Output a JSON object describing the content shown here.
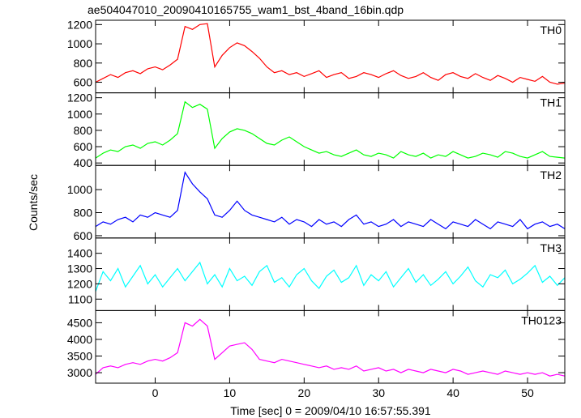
{
  "chart_data": {
    "type": "line",
    "title": "ae504047010_20090410165755_wam1_bst_4band_16bin.qdp",
    "xlabel": "Time [sec] 0 = 2009/04/10 16:57:55.391",
    "ylabel": "Counts/sec",
    "xlim": [
      -8,
      55
    ],
    "xticks": [
      0,
      10,
      20,
      30,
      40,
      50
    ],
    "x": [
      -8,
      -7,
      -6,
      -5,
      -4,
      -3,
      -2,
      -1,
      0,
      1,
      2,
      3,
      4,
      5,
      6,
      7,
      8,
      9,
      10,
      11,
      12,
      13,
      14,
      15,
      16,
      17,
      18,
      19,
      20,
      21,
      22,
      23,
      24,
      25,
      26,
      27,
      28,
      29,
      30,
      31,
      32,
      33,
      34,
      35,
      36,
      37,
      38,
      39,
      40,
      41,
      42,
      43,
      44,
      45,
      46,
      47,
      48,
      49,
      50,
      51,
      52,
      53,
      54,
      55
    ],
    "panels": [
      {
        "name": "TH0",
        "color": "#ff0000",
        "ylim": [
          490,
          1245
        ],
        "yticks": [
          600,
          800,
          1000,
          1200
        ],
        "values": [
          600,
          640,
          680,
          650,
          700,
          720,
          690,
          740,
          760,
          730,
          780,
          840,
          1180,
          1150,
          1200,
          1210,
          760,
          880,
          960,
          1010,
          980,
          920,
          850,
          760,
          700,
          720,
          680,
          700,
          660,
          690,
          720,
          650,
          680,
          700,
          640,
          660,
          700,
          680,
          650,
          690,
          720,
          670,
          640,
          660,
          700,
          650,
          620,
          680,
          700,
          660,
          640,
          690,
          650,
          620,
          670,
          640,
          600,
          650,
          630,
          610,
          660,
          600,
          580,
          590
        ]
      },
      {
        "name": "TH1",
        "color": "#00ff00",
        "ylim": [
          370,
          1260
        ],
        "yticks": [
          400,
          600,
          800,
          1000,
          1200
        ],
        "values": [
          460,
          520,
          560,
          540,
          600,
          620,
          580,
          640,
          660,
          620,
          680,
          760,
          1150,
          1080,
          1120,
          1060,
          580,
          700,
          780,
          820,
          800,
          760,
          700,
          640,
          620,
          680,
          720,
          660,
          600,
          560,
          520,
          540,
          500,
          480,
          520,
          560,
          500,
          480,
          520,
          500,
          460,
          540,
          500,
          480,
          520,
          460,
          500,
          480,
          540,
          500,
          460,
          480,
          520,
          500,
          470,
          540,
          520,
          480,
          460,
          500,
          540,
          480,
          470,
          460
        ]
      },
      {
        "name": "TH2",
        "color": "#0000ff",
        "ylim": [
          580,
          1210
        ],
        "yticks": [
          600,
          800,
          1000
        ],
        "values": [
          680,
          720,
          700,
          740,
          760,
          720,
          780,
          760,
          800,
          780,
          760,
          820,
          1150,
          1050,
          980,
          920,
          780,
          760,
          820,
          900,
          820,
          780,
          760,
          740,
          720,
          760,
          700,
          740,
          720,
          680,
          740,
          700,
          720,
          680,
          740,
          780,
          700,
          720,
          680,
          700,
          740,
          680,
          720,
          700,
          680,
          740,
          700,
          660,
          720,
          700,
          680,
          740,
          700,
          660,
          720,
          700,
          680,
          740,
          660,
          700,
          720,
          680,
          700,
          660
        ]
      },
      {
        "name": "TH3",
        "color": "#00ffff",
        "ylim": [
          1025,
          1500
        ],
        "yticks": [
          1100,
          1200,
          1300,
          1400
        ],
        "values": [
          1150,
          1280,
          1220,
          1300,
          1180,
          1250,
          1320,
          1200,
          1260,
          1180,
          1240,
          1300,
          1220,
          1280,
          1340,
          1200,
          1260,
          1180,
          1300,
          1220,
          1250,
          1190,
          1280,
          1320,
          1210,
          1240,
          1180,
          1260,
          1300,
          1220,
          1170,
          1250,
          1290,
          1210,
          1240,
          1320,
          1190,
          1260,
          1220,
          1280,
          1180,
          1240,
          1300,
          1210,
          1260,
          1190,
          1230,
          1280,
          1200,
          1250,
          1310,
          1220,
          1180,
          1260,
          1240,
          1290,
          1200,
          1230,
          1270,
          1320,
          1210,
          1250,
          1190,
          1240
        ]
      },
      {
        "name": "TH0123",
        "color": "#ff00ff",
        "ylim": [
          2685,
          4865
        ],
        "yticks": [
          3000,
          3500,
          4000,
          4500
        ],
        "values": [
          2950,
          3150,
          3200,
          3150,
          3250,
          3300,
          3250,
          3350,
          3400,
          3350,
          3450,
          3600,
          4500,
          4400,
          4600,
          4400,
          3400,
          3600,
          3800,
          3850,
          3900,
          3700,
          3400,
          3350,
          3300,
          3400,
          3350,
          3300,
          3250,
          3200,
          3150,
          3200,
          3100,
          3150,
          3100,
          3200,
          3050,
          3100,
          3150,
          3050,
          3100,
          3000,
          3100,
          3050,
          3000,
          3100,
          3050,
          3000,
          3100,
          3050,
          2950,
          3000,
          3050,
          3000,
          2950,
          3050,
          3000,
          2950,
          3000,
          2950,
          3000,
          2900,
          2950,
          2900
        ]
      }
    ]
  }
}
